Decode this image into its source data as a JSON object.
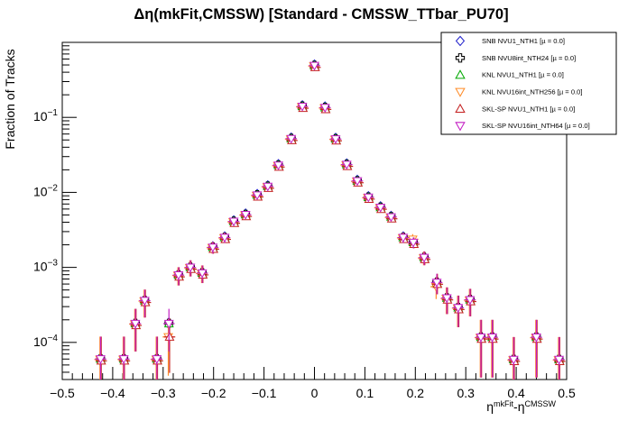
{
  "title": "Δη(mkFit,CMSSW) [Standard - CMSSW_TTbar_PU70]",
  "chart_data": {
    "type": "scatter",
    "title": "Δη(mkFit,CMSSW) [Standard - CMSSW_TTbar_PU70]",
    "ylabel": "Fraction of Tracks",
    "xlabel_parts": [
      {
        "t": "η",
        "sup": false
      },
      {
        "t": "mkFit",
        "sup": true
      },
      {
        "t": "-η",
        "sup": false
      },
      {
        "t": "CMSSW",
        "sup": true
      }
    ],
    "x_axis": {
      "min": -0.5,
      "max": 0.5,
      "major_tick_step": 0.1,
      "minor_tick_step": 0.02,
      "tick_labels": [
        "−0.5",
        "−0.4",
        "−0.3",
        "−0.2",
        "−0.1",
        "0",
        "0.1",
        "0.2",
        "0.3",
        "0.4",
        "0.5"
      ]
    },
    "y_axis": {
      "scale": "log",
      "min": 3.2e-05,
      "max": 1.0,
      "labeled_decades": [
        {
          "value": 0.1,
          "mantissa": "10",
          "exponent": "−1"
        },
        {
          "value": 0.01,
          "mantissa": "10",
          "exponent": "−2"
        },
        {
          "value": 0.001,
          "mantissa": "10",
          "exponent": "−3"
        },
        {
          "value": 0.0001,
          "mantissa": "10",
          "exponent": "−4"
        }
      ]
    },
    "grid": false,
    "legend_position": "top-right",
    "series": [
      {
        "name": "SNB NVU1_NTH1",
        "legend_label": "SNB NVU1_NTH1 [µ =  0.0]",
        "marker": "diamond",
        "color": "#2222cc"
      },
      {
        "name": "SNB NVU8int_NTH24",
        "legend_label": "SNB NVU8int_NTH24 [µ =  0.0]",
        "marker": "open-cross",
        "color": "#000000"
      },
      {
        "name": "KNL NVU1_NTH1",
        "legend_label": "KNL NVU1_NTH1 [µ =  0.0]",
        "marker": "triangle-up",
        "color": "#00a800"
      },
      {
        "name": "KNL NVU16int_NTH256",
        "legend_label": "KNL NVU16int_NTH256 [µ =  0.0]",
        "marker": "triangle-down",
        "color": "#ff8c28"
      },
      {
        "name": "SKL-SP NVU1_NTH1",
        "legend_label": "SKL-SP NVU1_NTH1 [µ =  0.0]",
        "marker": "triangle-up",
        "color": "#c42020"
      },
      {
        "name": "SKL-SP NVU16int_NTH64",
        "legend_label": "SKL-SP NVU16int_NTH64 [µ =  0.0]",
        "marker": "triangle-down",
        "color": "#c420c4"
      }
    ],
    "points_shared_by_all_series": true,
    "points": [
      [
        -0.424,
        6e-05
      ],
      [
        -0.378,
        6e-05
      ],
      [
        -0.355,
        0.000178
      ],
      [
        -0.3365,
        0.00036
      ],
      [
        -0.3125,
        6e-05
      ],
      [
        -0.2885,
        0.000178
      ],
      [
        -0.2695,
        0.00079
      ],
      [
        -0.246,
        0.001
      ],
      [
        -0.2225,
        0.00084
      ],
      [
        -0.2015,
        0.00185
      ],
      [
        -0.178,
        0.0025
      ],
      [
        -0.16,
        0.0041
      ],
      [
        -0.1365,
        0.00505
      ],
      [
        -0.1135,
        0.0092
      ],
      [
        -0.0925,
        0.012
      ],
      [
        -0.0715,
        0.023
      ],
      [
        -0.046,
        0.052
      ],
      [
        -0.024,
        0.14
      ],
      [
        0.0,
        0.49
      ],
      [
        0.021,
        0.135
      ],
      [
        0.042,
        0.0515
      ],
      [
        0.064,
        0.0235
      ],
      [
        0.085,
        0.0142
      ],
      [
        0.107,
        0.0086
      ],
      [
        0.131,
        0.0063
      ],
      [
        0.152,
        0.0047
      ],
      [
        0.176,
        0.0025
      ],
      [
        0.196,
        0.00215
      ],
      [
        0.2175,
        0.00135
      ],
      [
        0.2425,
        0.00063
      ],
      [
        0.2625,
        0.00039
      ],
      [
        0.285,
        0.00029
      ],
      [
        0.3085,
        0.00037
      ],
      [
        0.33,
        0.000117
      ],
      [
        0.3525,
        0.000117
      ],
      [
        0.395,
        5.9e-05
      ],
      [
        0.44,
        0.000117
      ],
      [
        0.485,
        5.9e-05
      ]
    ],
    "per_series_overrides": [
      {
        "x": -0.2885,
        "series_y": {
          "3": 0.00012,
          "4": 0.000125
        }
      },
      {
        "x": 0.2425,
        "series_y": {
          "3": 0.00056
        }
      },
      {
        "x": 0.196,
        "series_y": {
          "3": 0.0024
        }
      }
    ],
    "error_bars": {
      "type": "poisson",
      "n_total": 17000
    }
  }
}
